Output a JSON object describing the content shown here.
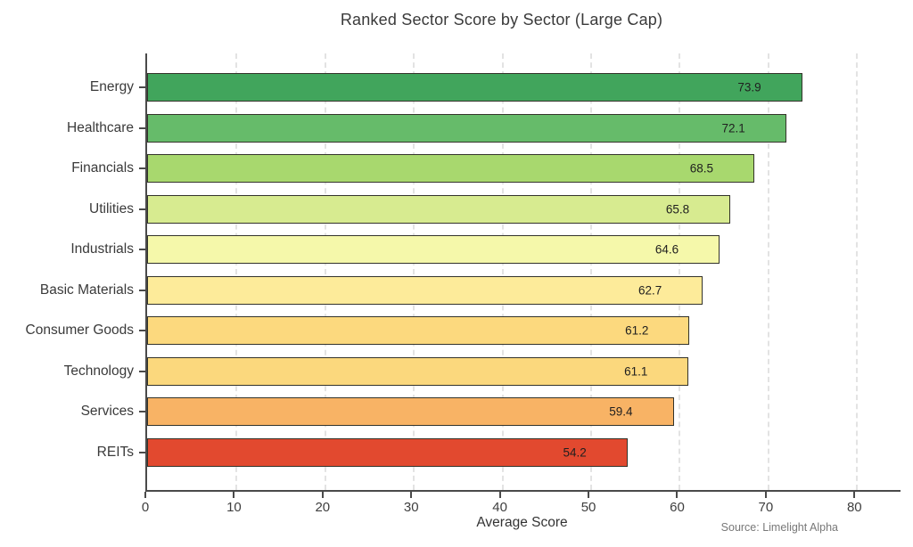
{
  "chart_data": {
    "type": "bar",
    "orientation": "horizontal",
    "title": "Ranked Sector Score by Sector (Large Cap)",
    "categories": [
      "Energy",
      "Healthcare",
      "Financials",
      "Utilities",
      "Industrials",
      "Basic Materials",
      "Consumer Goods",
      "Technology",
      "Services",
      "REITs"
    ],
    "values": [
      73.9,
      72.1,
      68.5,
      65.8,
      64.6,
      62.7,
      61.2,
      61.1,
      59.4,
      54.2
    ],
    "value_labels": [
      "73.9",
      "72.1",
      "68.5",
      "65.8",
      "64.6",
      "62.7",
      "61.2",
      "61.1",
      "59.4",
      "54.2"
    ],
    "bar_colors": [
      "#41a55c",
      "#66bb6a",
      "#a8d86e",
      "#d7eb90",
      "#f5f8aa",
      "#fdeb9a",
      "#fcd97e",
      "#fbd87d",
      "#f8b365",
      "#e2492f"
    ],
    "bar_border_color": "#33332a",
    "xlabel": "Average Score",
    "ylabel": "",
    "xlim": [
      0,
      85
    ],
    "xticks": [
      0,
      10,
      20,
      30,
      40,
      50,
      60,
      70,
      80
    ],
    "grid": "vertical-dashed",
    "legend": "none",
    "source": "Source: Limelight Alpha"
  }
}
